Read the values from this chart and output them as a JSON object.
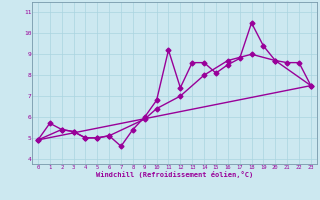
{
  "title": "",
  "xlabel": "Windchill (Refroidissement éolien,°C)",
  "bg_color": "#cce8f0",
  "line_color": "#990099",
  "xlim": [
    -0.5,
    23.5
  ],
  "ylim": [
    3.75,
    11.5
  ],
  "xticks": [
    0,
    1,
    2,
    3,
    4,
    5,
    6,
    7,
    8,
    9,
    10,
    11,
    12,
    13,
    14,
    15,
    16,
    17,
    18,
    19,
    20,
    21,
    22,
    23
  ],
  "yticks": [
    4,
    5,
    6,
    7,
    8,
    9,
    10,
    11
  ],
  "line1_x": [
    0,
    1,
    2,
    3,
    4,
    5,
    6,
    7,
    8,
    9,
    10,
    11,
    12,
    13,
    14,
    15,
    16,
    17,
    18,
    19,
    20,
    21,
    22,
    23
  ],
  "line1_y": [
    4.9,
    5.7,
    5.4,
    5.3,
    5.0,
    5.0,
    5.1,
    4.6,
    5.4,
    6.0,
    6.8,
    9.2,
    7.4,
    8.6,
    8.6,
    8.1,
    8.5,
    8.8,
    10.5,
    9.4,
    8.7,
    8.6,
    8.6,
    7.5
  ],
  "line2_x": [
    0,
    2,
    3,
    4,
    5,
    6,
    9,
    10,
    12,
    14,
    16,
    18,
    20,
    23
  ],
  "line2_y": [
    4.9,
    5.4,
    5.3,
    5.0,
    5.0,
    5.1,
    5.9,
    6.4,
    7.0,
    8.0,
    8.7,
    9.0,
    8.7,
    7.5
  ],
  "line3_x": [
    0,
    23
  ],
  "line3_y": [
    4.9,
    7.5
  ],
  "grid_color": "#aad4e0",
  "marker": "D",
  "markersize": 2.5,
  "linewidth": 1.0
}
